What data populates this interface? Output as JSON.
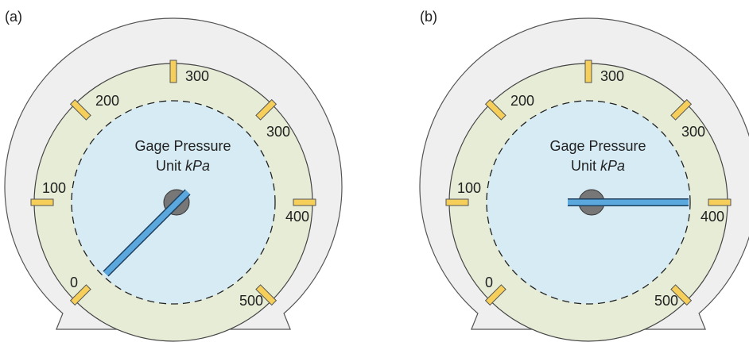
{
  "gauges": [
    {
      "label": "(a)",
      "title": "Gage Pressure",
      "unit_prefix": "Unit",
      "unit": "kPa",
      "ticks": [
        "300",
        "200",
        "300",
        "100",
        "400",
        "0",
        "500"
      ]
    },
    {
      "label": "(b)",
      "title": "Gage Pressure",
      "unit_prefix": "Unit",
      "unit": "kPa",
      "ticks": [
        "300",
        "200",
        "300",
        "100",
        "400",
        "0",
        "500"
      ]
    }
  ]
}
